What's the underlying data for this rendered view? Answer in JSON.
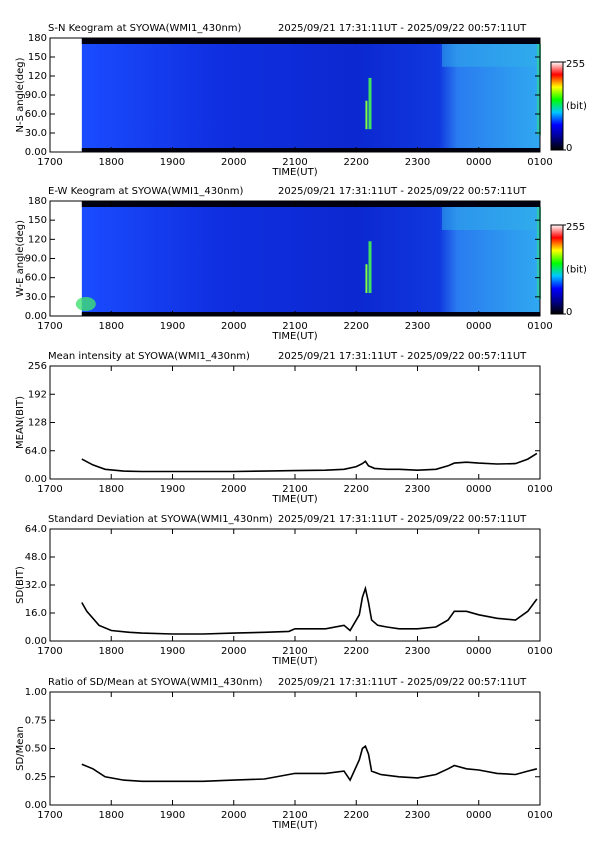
{
  "chart_data": [
    {
      "type": "keogram",
      "title": "S-N Keogram at SYOWA(WMI1_430nm)",
      "time_range": "2025/09/21 17:31:11UT - 2025/09/22 00:57:11UT",
      "x_label": "TIME(UT)",
      "y_label": "N-S angle(deg)",
      "xlim": [
        17,
        25
      ],
      "xticks": [
        {
          "value": 17,
          "label": "1700"
        },
        {
          "value": 18,
          "label": "1800"
        },
        {
          "value": 19,
          "label": "1900"
        },
        {
          "value": 20,
          "label": "2000"
        },
        {
          "value": 21,
          "label": "2100"
        },
        {
          "value": 22,
          "label": "2200"
        },
        {
          "value": 23,
          "label": "2300"
        },
        {
          "value": 24,
          "label": "0000"
        },
        {
          "value": 25,
          "label": "0100"
        }
      ],
      "ylim": [
        0,
        180
      ],
      "yticks": [
        {
          "value": 0,
          "label": "0.00"
        },
        {
          "value": 30,
          "label": "30.0"
        },
        {
          "value": 60,
          "label": "60.0"
        },
        {
          "value": 90,
          "label": "90.0"
        },
        120,
        150,
        180
      ],
      "colorbar": {
        "label": "(bit)",
        "ticks": [
          0,
          255
        ],
        "colormap": [
          "#000000",
          "#00008b",
          "#0000ff",
          "#00c8ff",
          "#00ff00",
          "#ffff00",
          "#ff0000",
          "#ffffff"
        ]
      }
    },
    {
      "type": "keogram",
      "title": "E-W Keogram at SYOWA(WMI1_430nm)",
      "time_range": "2025/09/21 17:31:11UT - 2025/09/22 00:57:11UT",
      "x_label": "TIME(UT)",
      "y_label": "W-E angle(deg)",
      "xlim": [
        17,
        25
      ],
      "xticks": [
        {
          "value": 17,
          "label": "1700"
        },
        {
          "value": 18,
          "label": "1800"
        },
        {
          "value": 19,
          "label": "1900"
        },
        {
          "value": 20,
          "label": "2000"
        },
        {
          "value": 21,
          "label": "2100"
        },
        {
          "value": 22,
          "label": "2200"
        },
        {
          "value": 23,
          "label": "2300"
        },
        {
          "value": 24,
          "label": "0000"
        },
        {
          "value": 25,
          "label": "0100"
        }
      ],
      "ylim": [
        0,
        180
      ],
      "yticks": [
        {
          "value": 0,
          "label": "0.00"
        },
        {
          "value": 30,
          "label": "30.0"
        },
        {
          "value": 60,
          "label": "60.0"
        },
        {
          "value": 90,
          "label": "90.0"
        },
        120,
        150,
        180
      ],
      "colorbar": {
        "label": "(bit)",
        "ticks": [
          0,
          255
        ],
        "colormap": [
          "#000000",
          "#00008b",
          "#0000ff",
          "#00c8ff",
          "#00ff00",
          "#ffff00",
          "#ff0000",
          "#ffffff"
        ]
      }
    },
    {
      "type": "line",
      "title": "Mean intensity at SYOWA(WMI1_430nm)",
      "time_range": "2025/09/21 17:31:11UT - 2025/09/22 00:57:11UT",
      "x_label": "TIME(UT)",
      "y_label": "MEAN(BIT)",
      "xlim": [
        17,
        25
      ],
      "xticks": [
        {
          "value": 17,
          "label": "1700"
        },
        {
          "value": 18,
          "label": "1800"
        },
        {
          "value": 19,
          "label": "1900"
        },
        {
          "value": 20,
          "label": "2000"
        },
        {
          "value": 21,
          "label": "2100"
        },
        {
          "value": 22,
          "label": "2200"
        },
        {
          "value": 23,
          "label": "2300"
        },
        {
          "value": 24,
          "label": "0000"
        },
        {
          "value": 25,
          "label": "0100"
        }
      ],
      "ylim": [
        0,
        256
      ],
      "yticks": [
        {
          "value": 0,
          "label": "0.00"
        },
        {
          "value": 64,
          "label": "64.0"
        },
        128,
        192,
        256
      ],
      "color": "#000000",
      "x": [
        17.52,
        17.7,
        17.9,
        18.2,
        18.5,
        19,
        19.5,
        20,
        20.5,
        21,
        21.5,
        21.8,
        22.0,
        22.1,
        22.15,
        22.2,
        22.3,
        22.5,
        22.7,
        23,
        23.3,
        23.5,
        23.6,
        23.8,
        24,
        24.3,
        24.6,
        24.8,
        24.95
      ],
      "values": [
        45,
        32,
        22,
        18,
        17,
        17,
        17,
        17,
        18,
        19,
        20,
        22,
        28,
        35,
        40,
        30,
        24,
        22,
        22,
        20,
        22,
        30,
        36,
        38,
        36,
        34,
        35,
        45,
        58
      ]
    },
    {
      "type": "line",
      "title": "Standard Deviation at SYOWA(WMI1_430nm)",
      "time_range": "2025/09/21 17:31:11UT - 2025/09/22 00:57:11UT",
      "x_label": "TIME(UT)",
      "y_label": "SD(BIT)",
      "xlim": [
        17,
        25
      ],
      "xticks": [
        {
          "value": 17,
          "label": "1700"
        },
        {
          "value": 18,
          "label": "1800"
        },
        {
          "value": 19,
          "label": "1900"
        },
        {
          "value": 20,
          "label": "2000"
        },
        {
          "value": 21,
          "label": "2100"
        },
        {
          "value": 22,
          "label": "2200"
        },
        {
          "value": 23,
          "label": "2300"
        },
        {
          "value": 24,
          "label": "0000"
        },
        {
          "value": 25,
          "label": "0100"
        }
      ],
      "ylim": [
        0,
        64
      ],
      "yticks": [
        {
          "value": 0,
          "label": "0.00"
        },
        {
          "value": 16,
          "label": "16.0"
        },
        {
          "value": 32,
          "label": "32.0"
        },
        {
          "value": 48,
          "label": "48.0"
        },
        {
          "value": 64,
          "label": "64.0"
        }
      ],
      "color": "#000000",
      "x": [
        17.52,
        17.6,
        17.8,
        18,
        18.3,
        18.5,
        19,
        19.5,
        20,
        20.5,
        20.9,
        21.0,
        21.5,
        21.8,
        21.9,
        22.05,
        22.1,
        22.15,
        22.2,
        22.25,
        22.35,
        22.5,
        22.7,
        23.0,
        23.3,
        23.5,
        23.6,
        23.8,
        24,
        24.3,
        24.6,
        24.8,
        24.95
      ],
      "values": [
        22,
        17,
        9,
        6,
        5,
        4.5,
        4,
        4,
        4.5,
        5,
        5.5,
        7,
        7,
        9,
        6,
        15,
        25,
        30,
        22,
        12,
        9,
        8,
        7,
        7,
        8,
        12,
        17,
        17,
        15,
        13,
        12,
        17,
        24
      ]
    },
    {
      "type": "line",
      "title": "Ratio of SD/Mean at SYOWA(WMI1_430nm)",
      "time_range": "2025/09/21 17:31:11UT - 2025/09/22 00:57:11UT",
      "x_label": "TIME(UT)",
      "y_label": "SD/Mean",
      "xlim": [
        17,
        25
      ],
      "xticks": [
        {
          "value": 17,
          "label": "1700"
        },
        {
          "value": 18,
          "label": "1800"
        },
        {
          "value": 19,
          "label": "1900"
        },
        {
          "value": 20,
          "label": "2000"
        },
        {
          "value": 21,
          "label": "2100"
        },
        {
          "value": 22,
          "label": "2200"
        },
        {
          "value": 23,
          "label": "2300"
        },
        {
          "value": 24,
          "label": "0000"
        },
        {
          "value": 25,
          "label": "0100"
        }
      ],
      "ylim": [
        0,
        1
      ],
      "yticks": [
        {
          "value": 0,
          "label": "0.00"
        },
        0.25,
        {
          "value": 0.5,
          "label": "0.50"
        },
        0.75,
        {
          "value": 1,
          "label": "1.00"
        }
      ],
      "color": "#000000",
      "x": [
        17.52,
        17.7,
        17.9,
        18.2,
        18.5,
        19,
        19.5,
        20,
        20.5,
        21,
        21.5,
        21.8,
        21.9,
        22.05,
        22.1,
        22.15,
        22.2,
        22.25,
        22.4,
        22.7,
        23.0,
        23.3,
        23.5,
        23.6,
        23.8,
        24,
        24.3,
        24.6,
        24.8,
        24.95
      ],
      "values": [
        0.36,
        0.32,
        0.25,
        0.22,
        0.21,
        0.21,
        0.21,
        0.22,
        0.23,
        0.28,
        0.28,
        0.3,
        0.22,
        0.4,
        0.5,
        0.52,
        0.45,
        0.3,
        0.27,
        0.25,
        0.24,
        0.27,
        0.32,
        0.35,
        0.32,
        0.31,
        0.28,
        0.27,
        0.3,
        0.32
      ]
    }
  ]
}
